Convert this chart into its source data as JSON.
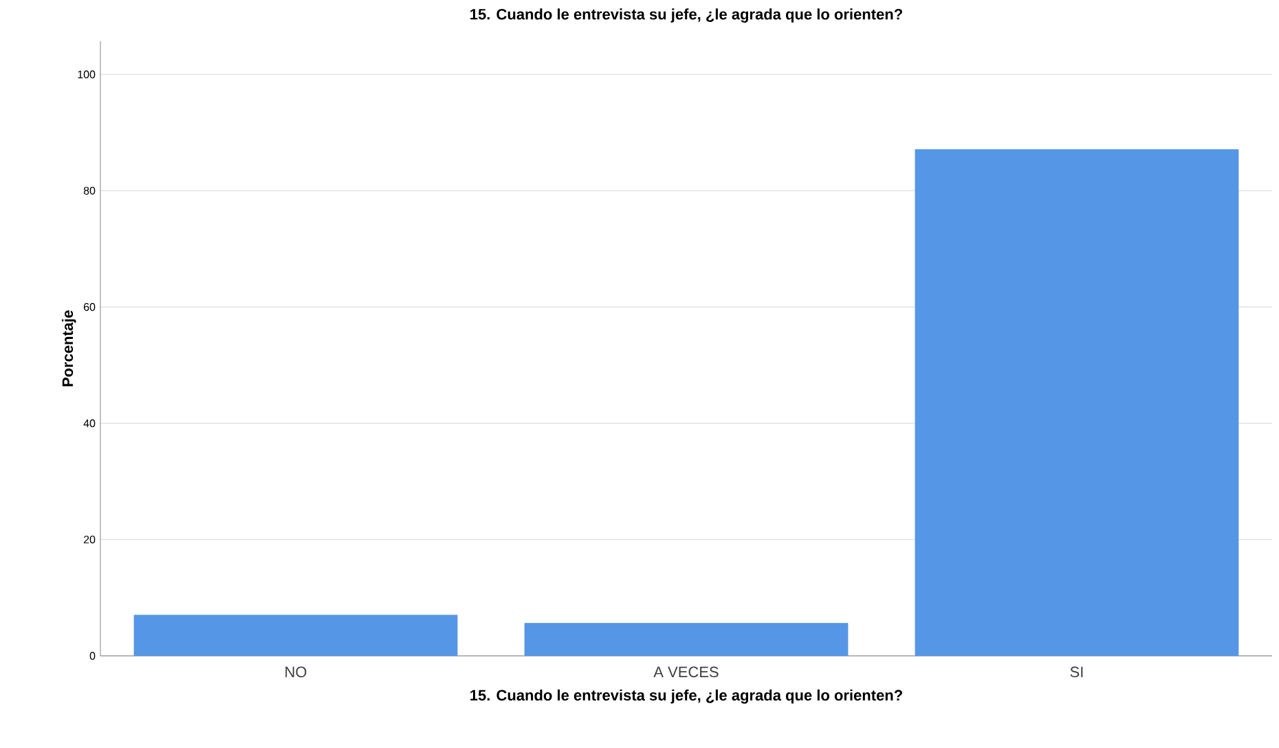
{
  "chart_data": {
    "type": "bar",
    "title": "15. Cuando le entrevista su jefe, ¿le agrada que lo orienten?",
    "xlabel": "15. Cuando le entrevista su jefe, ¿le agrada que lo orienten?",
    "ylabel": "Porcentaje",
    "categories": [
      "NO",
      "A VECES",
      "SI"
    ],
    "values": [
      7.0,
      5.6,
      87.1
    ],
    "color": "#5596e6",
    "ylim": [
      0,
      105.7
    ],
    "yticks": [
      0,
      20,
      40,
      60,
      80,
      100
    ],
    "grid": "y"
  }
}
